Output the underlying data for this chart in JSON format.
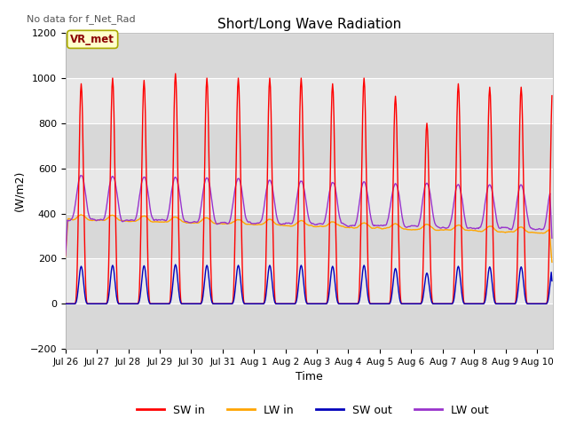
{
  "title": "Short/Long Wave Radiation",
  "xlabel": "Time",
  "ylabel": "(W/m2)",
  "annotation": "No data for f_Net_Rad",
  "legend_label": "VR_met",
  "ylim": [
    -200,
    1200
  ],
  "yticks": [
    -200,
    0,
    200,
    400,
    600,
    800,
    1000,
    1200
  ],
  "n_days": 15.5,
  "colors": {
    "sw_in": "#ff0000",
    "lw_in": "#ffa500",
    "sw_out": "#0000bb",
    "lw_out": "#9933cc"
  },
  "band_colors": [
    "#d8d8d8",
    "#e8e8e8"
  ],
  "linewidth": 1.0,
  "day_labels": [
    "Jul 26",
    "Jul 27",
    "Jul 28",
    "Jul 29",
    "Jul 30",
    "Jul 31",
    "Aug 1",
    "Aug 2",
    "Aug 3",
    "Aug 4",
    "Aug 5",
    "Aug 6",
    "Aug 7",
    "Aug 8",
    "Aug 9",
    "Aug 10"
  ]
}
